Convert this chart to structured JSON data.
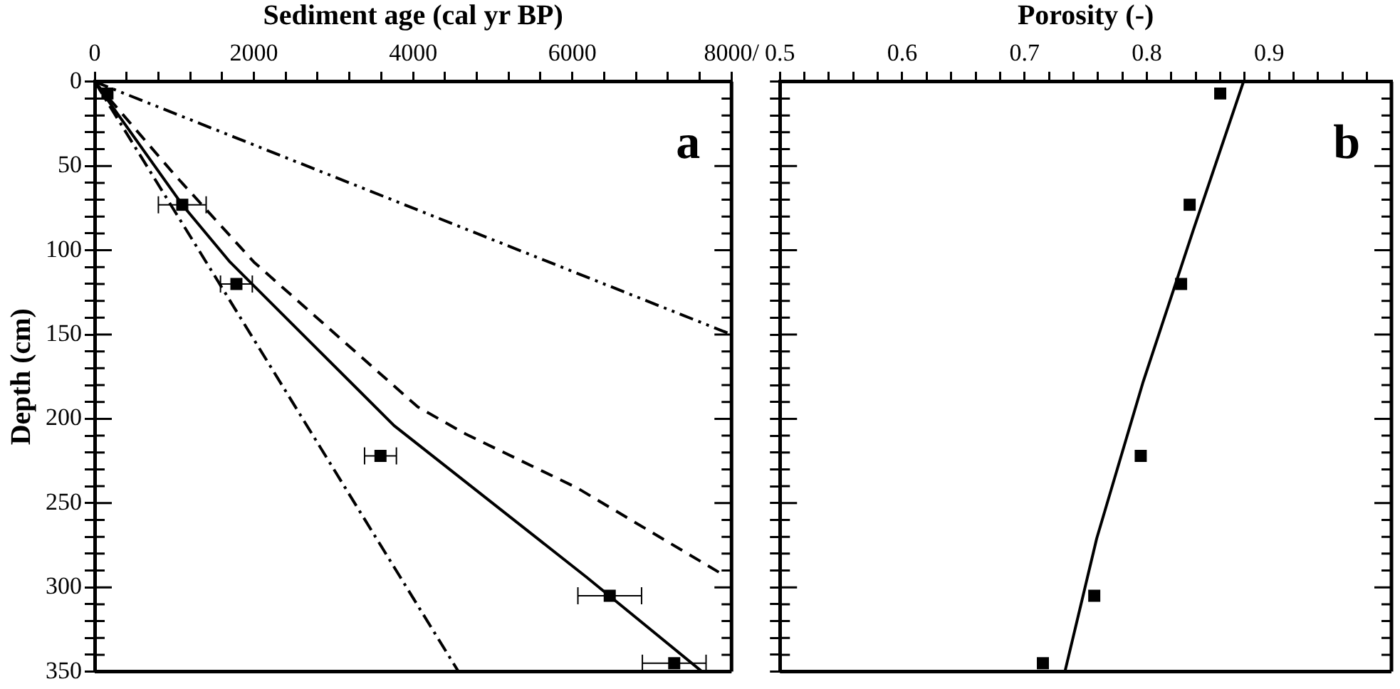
{
  "chart_data": [
    {
      "type": "scatter",
      "xlabel": "Sediment age (cal yr BP)",
      "ylabel": "Depth (cm)",
      "annotations": [
        "a"
      ],
      "grid": false,
      "xlim": [
        0,
        8000
      ],
      "xticks": [
        0,
        {
          "value": 400,
          "label": null
        },
        {
          "value": 800,
          "label": null
        },
        {
          "value": 1200,
          "label": null
        },
        {
          "value": 1600,
          "label": null
        },
        2000,
        {
          "value": 2400,
          "label": null
        },
        {
          "value": 2800,
          "label": null
        },
        {
          "value": 3200,
          "label": null
        },
        {
          "value": 3600,
          "label": null
        },
        4000,
        {
          "value": 4400,
          "label": null
        },
        {
          "value": 4800,
          "label": null
        },
        {
          "value": 5200,
          "label": null
        },
        {
          "value": 5600,
          "label": null
        },
        6000,
        {
          "value": 6400,
          "label": null
        },
        {
          "value": 6800,
          "label": null
        },
        {
          "value": 7200,
          "label": null
        },
        {
          "value": 7600,
          "label": null
        },
        {
          "value": 8000,
          "label": "8000/"
        }
      ],
      "ylim": [
        350,
        0
      ],
      "yticks": [
        0,
        {
          "value": 10,
          "label": null
        },
        {
          "value": 20,
          "label": null
        },
        {
          "value": 30,
          "label": null
        },
        {
          "value": 40,
          "label": null
        },
        50,
        {
          "value": 60,
          "label": null
        },
        {
          "value": 70,
          "label": null
        },
        {
          "value": 80,
          "label": null
        },
        {
          "value": 90,
          "label": null
        },
        100,
        {
          "value": 110,
          "label": null
        },
        {
          "value": 120,
          "label": null
        },
        {
          "value": 130,
          "label": null
        },
        {
          "value": 140,
          "label": null
        },
        150,
        {
          "value": 160,
          "label": null
        },
        {
          "value": 170,
          "label": null
        },
        {
          "value": 180,
          "label": null
        },
        {
          "value": 190,
          "label": null
        },
        200,
        {
          "value": 210,
          "label": null
        },
        {
          "value": 220,
          "label": null
        },
        {
          "value": 230,
          "label": null
        },
        {
          "value": 240,
          "label": null
        },
        250,
        {
          "value": 260,
          "label": null
        },
        {
          "value": 270,
          "label": null
        },
        {
          "value": 280,
          "label": null
        },
        {
          "value": 290,
          "label": null
        },
        300,
        {
          "value": 310,
          "label": null
        },
        {
          "value": 320,
          "label": null
        },
        {
          "value": 330,
          "label": null
        },
        {
          "value": 340,
          "label": null
        },
        350
      ],
      "series": [
        {
          "type": "line",
          "color": "#000000",
          "line_style": "dashdotdot",
          "marker": "none",
          "x": [
            0,
            8000
          ],
          "values": [
            0,
            150
          ]
        },
        {
          "type": "line",
          "color": "#000000",
          "line_style": "dashed",
          "marker": "none",
          "x": [
            0,
            1000,
            2000,
            4060,
            4660,
            6060,
            7840
          ],
          "values": [
            0,
            55,
            107,
            193,
            209,
            241,
            291
          ]
        },
        {
          "type": "line",
          "color": "#000000",
          "line_style": "solid",
          "marker": "none",
          "x": [
            0,
            1100,
            1700,
            3760,
            6180,
            7630
          ],
          "values": [
            0,
            73,
            107,
            204,
            294,
            350
          ]
        },
        {
          "type": "line",
          "color": "#000000",
          "line_style": "dashdot",
          "marker": "none",
          "x": [
            0,
            1400,
            4570
          ],
          "values": [
            0,
            107,
            350
          ]
        },
        {
          "type": "scatter",
          "color": "#000000",
          "marker": "square",
          "x": [
            160,
            1100,
            1780,
            3590,
            6470,
            7280
          ],
          "values": [
            7,
            73,
            120,
            222,
            305,
            345
          ],
          "xerrors": [
            null,
            300,
            200,
            200,
            400,
            400
          ]
        }
      ]
    },
    {
      "type": "scatter",
      "xlabel": "Porosity (-)",
      "annotations": [
        "b"
      ],
      "grid": false,
      "tick_labels": "x",
      "xlim": [
        0.5,
        1.0
      ],
      "xticks": [
        0.5,
        {
          "value": 0.52,
          "label": null
        },
        {
          "value": 0.54,
          "label": null
        },
        {
          "value": 0.56,
          "label": null
        },
        {
          "value": 0.58,
          "label": null
        },
        0.6,
        {
          "value": 0.62,
          "label": null
        },
        {
          "value": 0.64,
          "label": null
        },
        {
          "value": 0.66,
          "label": null
        },
        {
          "value": 0.68,
          "label": null
        },
        0.7,
        {
          "value": 0.72,
          "label": null
        },
        {
          "value": 0.74,
          "label": null
        },
        {
          "value": 0.76,
          "label": null
        },
        {
          "value": 0.78,
          "label": null
        },
        0.8,
        {
          "value": 0.82,
          "label": null
        },
        {
          "value": 0.84,
          "label": null
        },
        {
          "value": 0.86,
          "label": null
        },
        {
          "value": 0.88,
          "label": null
        },
        0.9,
        {
          "value": 0.92,
          "label": null
        },
        {
          "value": 0.94,
          "label": null
        },
        {
          "value": 0.96,
          "label": null
        },
        {
          "value": 0.98,
          "label": null
        }
      ],
      "ylim": [
        350,
        0
      ],
      "yticks": [
        0,
        {
          "value": 10,
          "label": null
        },
        {
          "value": 20,
          "label": null
        },
        {
          "value": 30,
          "label": null
        },
        {
          "value": 40,
          "label": null
        },
        50,
        {
          "value": 60,
          "label": null
        },
        {
          "value": 70,
          "label": null
        },
        {
          "value": 80,
          "label": null
        },
        {
          "value": 90,
          "label": null
        },
        100,
        {
          "value": 110,
          "label": null
        },
        {
          "value": 120,
          "label": null
        },
        {
          "value": 130,
          "label": null
        },
        {
          "value": 140,
          "label": null
        },
        150,
        {
          "value": 160,
          "label": null
        },
        {
          "value": 170,
          "label": null
        },
        {
          "value": 180,
          "label": null
        },
        {
          "value": 190,
          "label": null
        },
        200,
        {
          "value": 210,
          "label": null
        },
        {
          "value": 220,
          "label": null
        },
        {
          "value": 230,
          "label": null
        },
        {
          "value": 240,
          "label": null
        },
        250,
        {
          "value": 260,
          "label": null
        },
        {
          "value": 270,
          "label": null
        },
        {
          "value": 280,
          "label": null
        },
        {
          "value": 290,
          "label": null
        },
        300,
        {
          "value": 310,
          "label": null
        },
        {
          "value": 320,
          "label": null
        },
        {
          "value": 330,
          "label": null
        },
        {
          "value": 340,
          "label": null
        },
        350
      ],
      "series": [
        {
          "type": "line",
          "color": "#000000",
          "line_style": "solid",
          "marker": "none",
          "x": [
            0.879,
            0.838,
            0.797,
            0.759,
            0.733
          ],
          "values": [
            0,
            88,
            178,
            271,
            350
          ]
        },
        {
          "type": "scatter",
          "color": "#000000",
          "marker": "square",
          "x": [
            0.86,
            0.835,
            0.828,
            0.795,
            0.757,
            0.715
          ],
          "values": [
            7,
            73,
            120,
            222,
            305,
            345
          ]
        }
      ]
    }
  ]
}
